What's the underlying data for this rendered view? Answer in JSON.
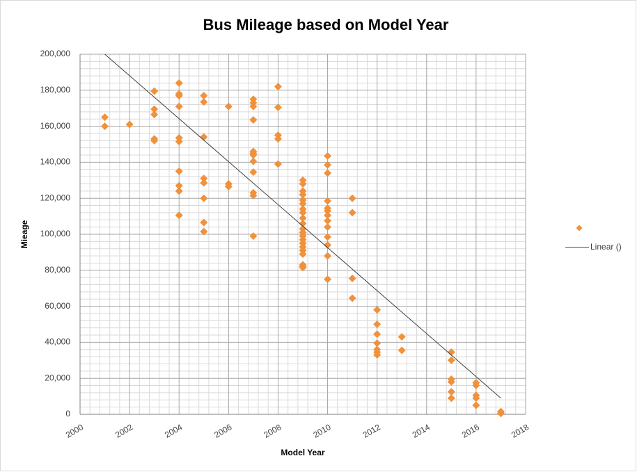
{
  "chart_data": {
    "type": "scatter",
    "title": "Bus Mileage based on Model Year",
    "x_label": "Model Year",
    "y_label": "Mieage",
    "xlim": [
      2000,
      2018
    ],
    "ylim": [
      0,
      200000
    ],
    "xticks": [
      2000,
      2002,
      2004,
      2006,
      2008,
      2010,
      2012,
      2014,
      2016,
      2018
    ],
    "yticks": [
      0,
      {
        "value": 20000,
        "label": "20,000"
      },
      {
        "value": 40000,
        "label": "40,000"
      },
      {
        "value": 60000,
        "label": "60,000"
      },
      {
        "value": 80000,
        "label": "80,000"
      },
      {
        "value": 100000,
        "label": "100,000"
      },
      {
        "value": 120000,
        "label": "120,000"
      },
      {
        "value": 140000,
        "label": "140,000"
      },
      {
        "value": 160000,
        "label": "160,000"
      },
      {
        "value": 180000,
        "label": "180,000"
      },
      {
        "value": 200000,
        "label": "200,000"
      }
    ],
    "grid": true,
    "minor_divisions": 5,
    "legend": "right",
    "series": [
      {
        "color": "#f0913b",
        "x": [
          2001,
          2001,
          2002,
          2003,
          2003,
          2003,
          2003,
          2003,
          2004,
          2004,
          2004,
          2004,
          2004,
          2004,
          2004,
          2004,
          2004,
          2004,
          2005,
          2005,
          2005,
          2005,
          2005,
          2005,
          2005,
          2005,
          2006,
          2006,
          2006,
          2007,
          2007,
          2007,
          2007,
          2007,
          2007,
          2007,
          2007,
          2007,
          2007,
          2007,
          2007,
          2008,
          2008,
          2008,
          2008,
          2008,
          2009,
          2009,
          2009,
          2009,
          2009,
          2009,
          2009,
          2009,
          2009,
          2009,
          2009,
          2009,
          2009,
          2009,
          2009,
          2009,
          2009,
          2009,
          2009,
          2009,
          2009,
          2010,
          2010,
          2010,
          2010,
          2010,
          2010,
          2010,
          2010,
          2010,
          2010,
          2010,
          2010,
          2010,
          2011,
          2011,
          2011,
          2011,
          2012,
          2012,
          2012,
          2012,
          2012,
          2012,
          2012,
          2013,
          2013,
          2015,
          2015,
          2015,
          2015,
          2015,
          2015,
          2016,
          2016,
          2016,
          2016,
          2016,
          2017,
          2017
        ],
        "values": [
          165000,
          160000,
          161000,
          179500,
          169500,
          166500,
          153000,
          152000,
          184000,
          178000,
          177000,
          171000,
          153500,
          151500,
          135000,
          127000,
          124000,
          110500,
          177000,
          173500,
          154000,
          131000,
          128500,
          120000,
          106500,
          101500,
          171000,
          128000,
          126500,
          175000,
          173000,
          171000,
          163500,
          146000,
          145000,
          144000,
          140500,
          134500,
          123000,
          121500,
          99000,
          182000,
          170500,
          155000,
          153000,
          139000,
          130000,
          128000,
          124000,
          122000,
          119000,
          117000,
          114000,
          112000,
          109000,
          106000,
          103000,
          101000,
          99000,
          97000,
          95000,
          93000,
          91000,
          89000,
          83000,
          82000,
          81500,
          143500,
          138500,
          134000,
          118500,
          114500,
          113000,
          110500,
          107500,
          104000,
          98500,
          94000,
          88000,
          75000,
          120000,
          112000,
          75500,
          64500,
          58000,
          50000,
          44500,
          39500,
          36000,
          34500,
          33000,
          43000,
          35500,
          34500,
          30000,
          19500,
          18000,
          12500,
          9000,
          17500,
          16000,
          10500,
          9000,
          5000,
          1500,
          500
        ]
      }
    ],
    "trendline": {
      "label": "Linear ()",
      "color": "#404040",
      "x": [
        2001,
        2017
      ],
      "values": [
        200000,
        9000
      ]
    }
  }
}
